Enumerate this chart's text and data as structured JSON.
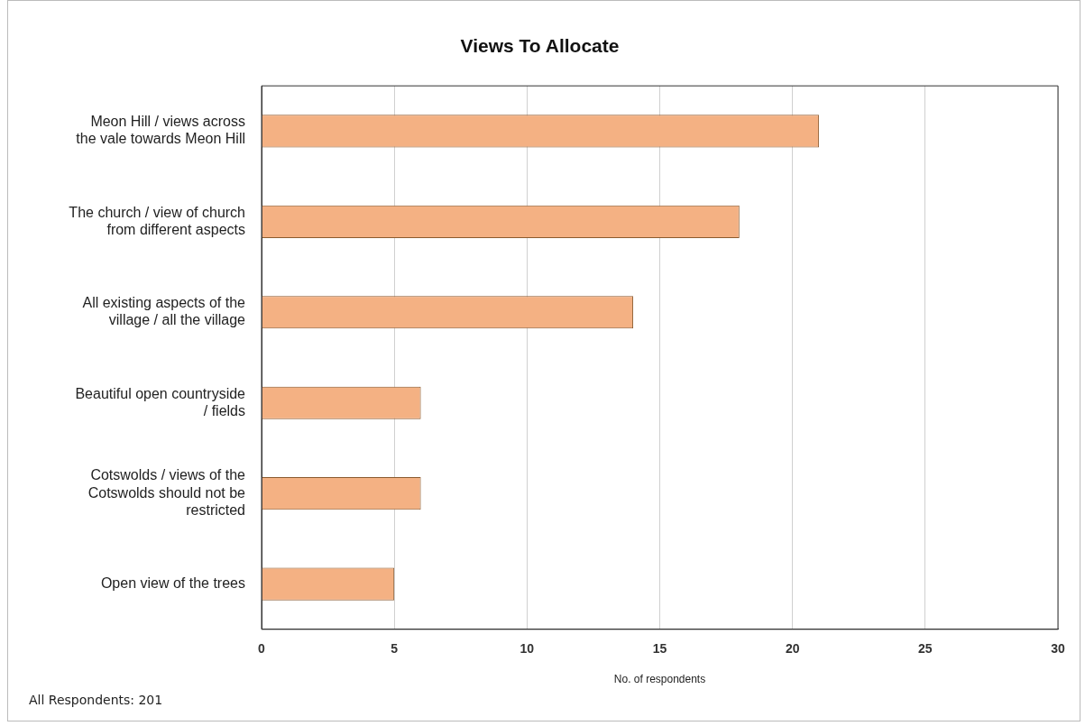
{
  "chart_data": {
    "type": "bar",
    "orientation": "horizontal",
    "title": "Views To Allocate",
    "xlabel": "No. of respondents",
    "categories": [
      "Meon Hill / views across the vale towards Meon Hill",
      "The church / view of church from different aspects",
      "All existing aspects of the village / all the village",
      "Beautiful open countryside / fields",
      "Cotswolds / views of the Cotswolds should not be restricted",
      "Open view of the trees"
    ],
    "values": [
      21,
      18,
      14,
      6,
      6,
      5
    ],
    "color": "#f4b183",
    "xlim": [
      0,
      30
    ],
    "xticks": [
      0,
      5,
      10,
      15,
      20,
      25,
      30
    ],
    "grid": "x",
    "legend": false,
    "annotations": [
      "All Respondents: 201"
    ]
  }
}
